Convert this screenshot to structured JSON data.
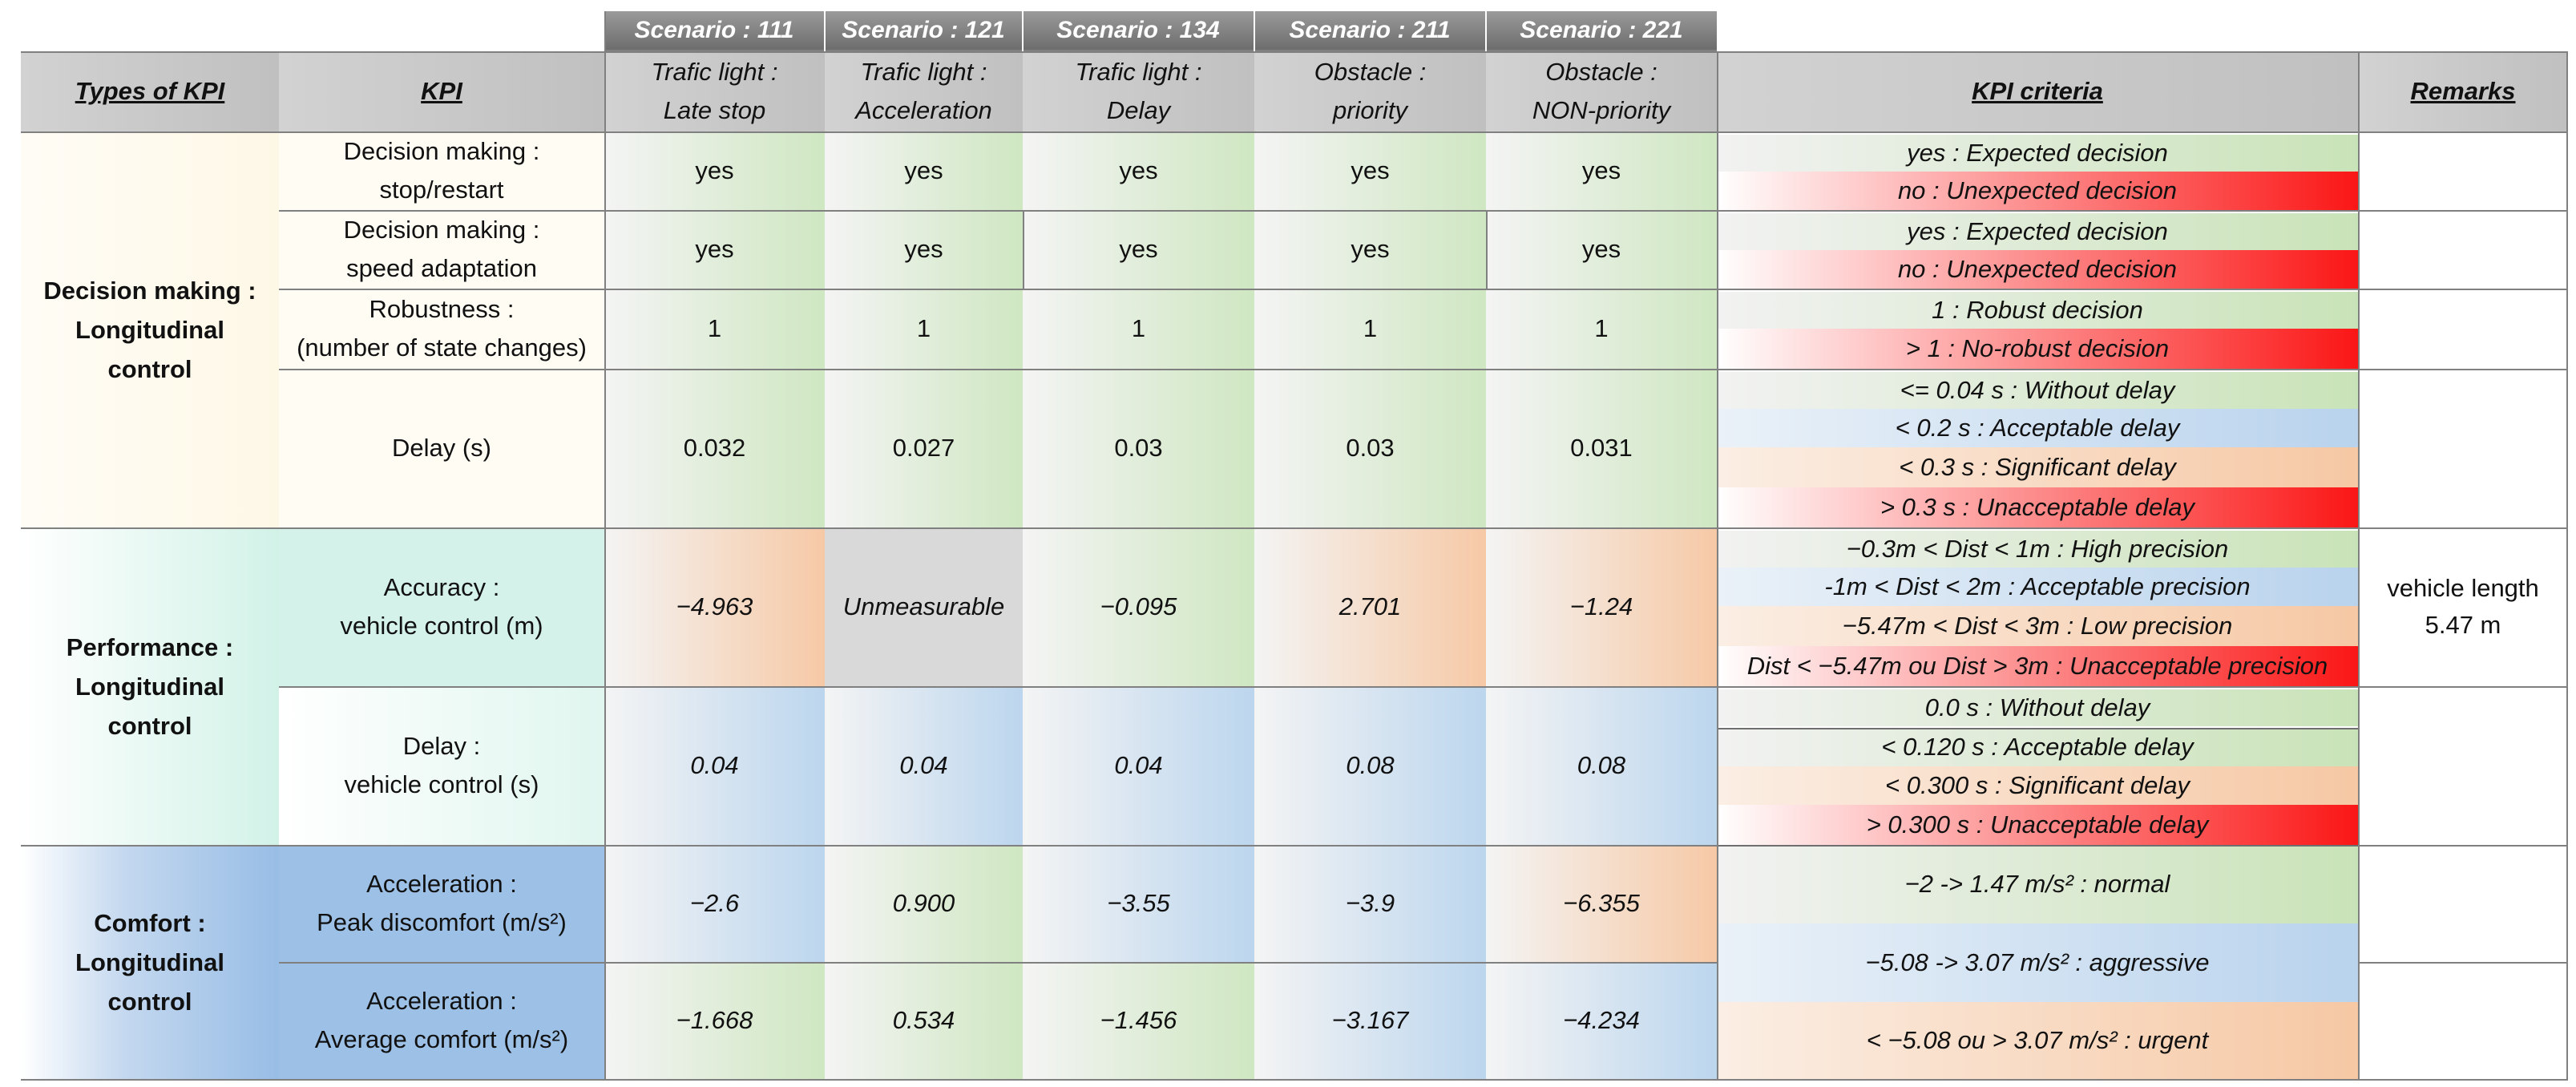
{
  "header": {
    "types_of_kpi": "Types of KPI",
    "kpi": "KPI",
    "kpi_criteria": "KPI criteria",
    "remarks": "Remarks"
  },
  "scenarios": [
    {
      "id": "Scenario : 111",
      "line1": "Trafic light :",
      "line2": "Late stop"
    },
    {
      "id": "Scenario : 121",
      "line1": "Trafic light :",
      "line2": "Acceleration"
    },
    {
      "id": "Scenario : 134",
      "line1": "Trafic light :",
      "line2": "Delay"
    },
    {
      "id": "Scenario : 211",
      "line1": "Obstacle :",
      "line2": "priority"
    },
    {
      "id": "Scenario : 221",
      "line1": "Obstacle :",
      "line2": "NON-priority"
    }
  ],
  "groups": [
    {
      "line1": "Decision making :",
      "line2": "Longitudinal",
      "line3": "control"
    },
    {
      "line1": "Performance :",
      "line2": "Longitudinal",
      "line3": "control"
    },
    {
      "line1": "Comfort :",
      "line2": "Longitudinal",
      "line3": "control"
    }
  ],
  "rows": [
    {
      "kpi1": "Decision making :",
      "kpi2": "stop/restart",
      "values": [
        "yes",
        "yes",
        "yes",
        "yes",
        "yes"
      ],
      "criteria": [
        "yes  : Expected decision",
        "no  : Unexpected decision"
      ]
    },
    {
      "kpi1": "Decision making :",
      "kpi2": "speed adaptation",
      "values": [
        "yes",
        "yes",
        "yes",
        "yes",
        "yes"
      ],
      "criteria": [
        "yes  : Expected decision",
        "no  : Unexpected decision"
      ]
    },
    {
      "kpi1": "Robustness :",
      "kpi2": "(number of state changes)",
      "values": [
        "1",
        "1",
        "1",
        "1",
        "1"
      ],
      "criteria": [
        "1  : Robust decision",
        "> 1  : No-robust decision"
      ]
    },
    {
      "kpi1": "Delay (s)",
      "kpi2": "",
      "values": [
        "0.032",
        "0.027",
        "0.03",
        "0.03",
        "0.031"
      ],
      "criteria": [
        "<= 0.04 s  : Without delay",
        "< 0.2 s : Acceptable delay",
        "< 0.3 s : Significant delay",
        "> 0.3 s : Unacceptable delay"
      ]
    },
    {
      "kpi1": "Accuracy :",
      "kpi2": "vehicle control (m)",
      "values": [
        "−4.963",
        "Unmeasurable",
        "−0.095",
        "2.701",
        "−1.24"
      ],
      "criteria": [
        "−0.3m < Dist  <  1m : High precision",
        "-1m < Dist <  2m : Acceptable precision",
        "−5.47m < Dist <  3m : Low precision",
        "Dist < −5.47m ou Dist > 3m : Unacceptable precision"
      ],
      "remark1": "vehicle length",
      "remark2": "5.47 m"
    },
    {
      "kpi1": "Delay :",
      "kpi2": "vehicle control (s)",
      "values": [
        "0.04",
        "0.04",
        "0.04",
        "0.08",
        "0.08"
      ],
      "criteria": [
        "0.0 s  : Without delay",
        "< 0.120 s : Acceptable delay",
        "< 0.300 s : Significant delay",
        "> 0.300 s : Unacceptable delay"
      ]
    },
    {
      "kpi1": "Acceleration :",
      "kpi2": "Peak discomfort (m/s²)",
      "values": [
        "−2.6",
        "0.900",
        "−3.55",
        "−3.9",
        "−6.355"
      ]
    },
    {
      "kpi1": "Acceleration :",
      "kpi2": "Average comfort (m/s²)",
      "values": [
        "−1.668",
        "0.534",
        "−1.456",
        "−3.167",
        "−4.234"
      ]
    }
  ],
  "comfort_criteria": [
    "−2 -> 1.47 m/s² : normal",
    "−5.08 -> 3.07 m/s² : aggressive",
    "< −5.08 ou > 3.07 m/s² : urgent"
  ],
  "colors": {
    "good": "#cfe7c2",
    "acceptable": "#bcd6ee",
    "significant": "#f6c9a6",
    "bad": "#fb1616",
    "unmeasurable": "#d9d9d9"
  }
}
